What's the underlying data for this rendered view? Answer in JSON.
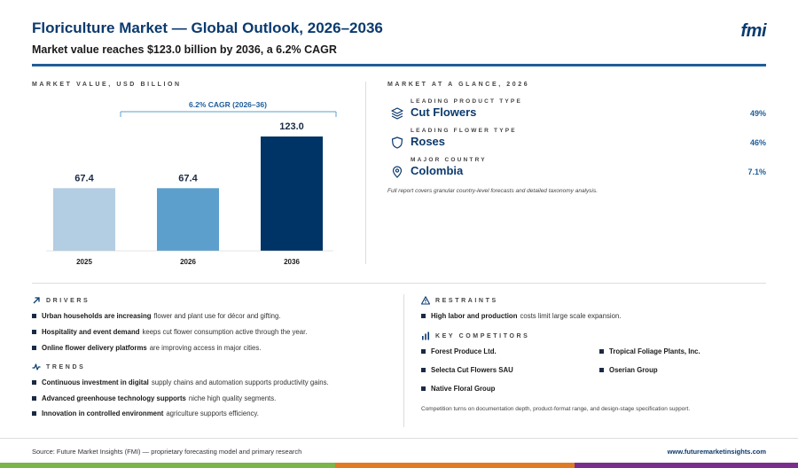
{
  "header": {
    "title": "Floriculture Market — Global Outlook, 2026–2036",
    "subtitle": "Market value reaches $123.0 billion by 2036, a 6.2% CAGR",
    "logo": "fmi"
  },
  "chart_section": {
    "label": "MARKET VALUE, USD BILLION"
  },
  "chart_data": {
    "type": "bar",
    "categories": [
      "2025",
      "2026",
      "2036"
    ],
    "values": [
      67.4,
      67.4,
      123.0
    ],
    "value_labels": [
      "67.4",
      "67.4",
      "123.0"
    ],
    "colors": [
      "#b3cde3",
      "#5c9fcc",
      "#003366"
    ],
    "annotation": "6.2% CAGR (2026–36)",
    "ylim": [
      0,
      123.0
    ],
    "grid": false
  },
  "glance": {
    "label": "MARKET AT A GLANCE, 2026",
    "items": [
      {
        "label": "LEADING PRODUCT TYPE",
        "value": "Cut Flowers",
        "pct": "49%",
        "icon": "layers-icon"
      },
      {
        "label": "LEADING FLOWER TYPE",
        "value": "Roses",
        "pct": "46%",
        "icon": "shield-icon"
      },
      {
        "label": "MAJOR COUNTRY",
        "value": "Colombia",
        "pct": "7.1%",
        "icon": "map-pin-icon"
      }
    ],
    "note": "Full report covers granular country-level forecasts and detailed taxonomy analysis."
  },
  "drivers": {
    "label": "DRIVERS",
    "items": [
      {
        "bold": "Urban households are increasing",
        "rest": "flower and plant use for décor and gifting."
      },
      {
        "bold": "Hospitality and event demand",
        "rest": "keeps cut flower consumption active through the year."
      },
      {
        "bold": "Online flower delivery platforms",
        "rest": "are improving access in major cities."
      }
    ]
  },
  "trends": {
    "label": "TRENDS",
    "items": [
      {
        "bold": "Continuous investment in digital",
        "rest": "supply chains and automation supports productivity gains."
      },
      {
        "bold": "Advanced greenhouse technology supports",
        "rest": "niche high quality segments."
      },
      {
        "bold": "Innovation in controlled environment",
        "rest": "agriculture supports efficiency."
      }
    ]
  },
  "restraints": {
    "label": "RESTRAINTS",
    "items": [
      {
        "bold": "High labor and production",
        "rest": "costs limit large scale expansion."
      }
    ]
  },
  "competitors": {
    "label": "KEY COMPETITORS",
    "items": [
      "Forest Produce Ltd.",
      "Tropical Foliage Plants, Inc.",
      "Selecta Cut Flowers SAU",
      "Oserian Group",
      "Native Floral Group"
    ],
    "note": "Competition turns on documentation depth, product-format range, and design-stage specification support."
  },
  "footer": {
    "source": "Source: Future Market Insights (FMI) — proprietary forecasting model and primary research",
    "url": "www.futuremarketinsights.com"
  },
  "stripe_colors": [
    "#7ab648",
    "#e07b24",
    "#7b2d8e"
  ]
}
